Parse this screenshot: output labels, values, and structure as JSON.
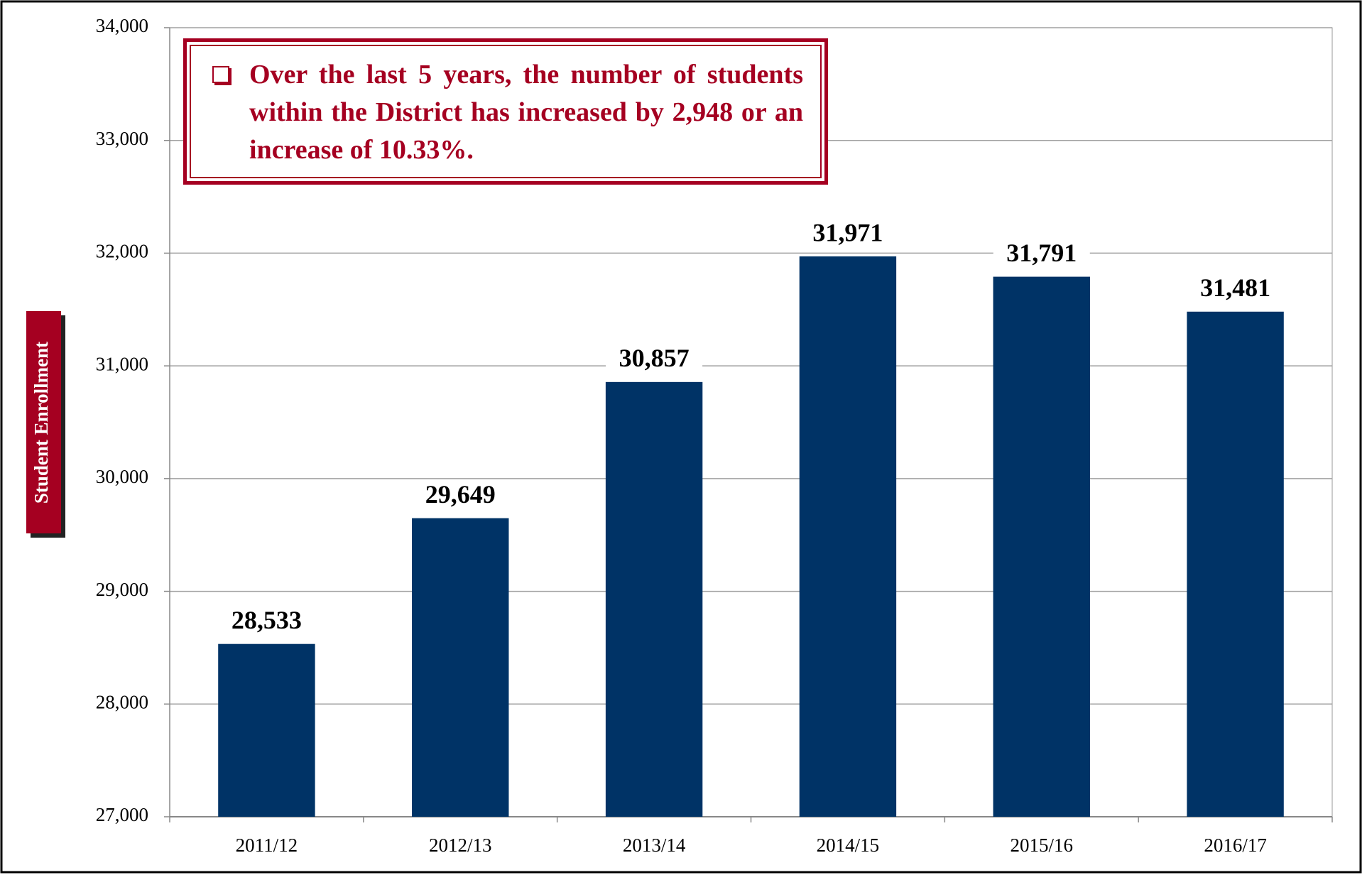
{
  "chart_data": {
    "type": "bar",
    "annotation": "Over the last 5 years, the number of students within the District has increased by 2,948 or an increase of 10.33%.",
    "ylabel": "Student Enrollment",
    "categories": [
      "2011/12",
      "2012/13",
      "2013/14",
      "2014/15",
      "2015/16",
      "2016/17"
    ],
    "values": [
      28533,
      29649,
      30857,
      31971,
      31791,
      31481
    ],
    "value_labels": [
      "28,533",
      "29,649",
      "30,857",
      "31,971",
      "31,791",
      "31,481"
    ],
    "color": "#003366",
    "ylim": [
      27000,
      34000
    ],
    "yticks": [
      {
        "value": 27000,
        "label": "27,000"
      },
      {
        "value": 28000,
        "label": "28,000"
      },
      {
        "value": 29000,
        "label": "29,000"
      },
      {
        "value": 30000,
        "label": "30,000"
      },
      {
        "value": 31000,
        "label": "31,000"
      },
      {
        "value": 32000,
        "label": "32,000"
      },
      {
        "value": 33000,
        "label": "33,000"
      },
      {
        "value": 34000,
        "label": "34,000"
      }
    ],
    "grid": true
  }
}
